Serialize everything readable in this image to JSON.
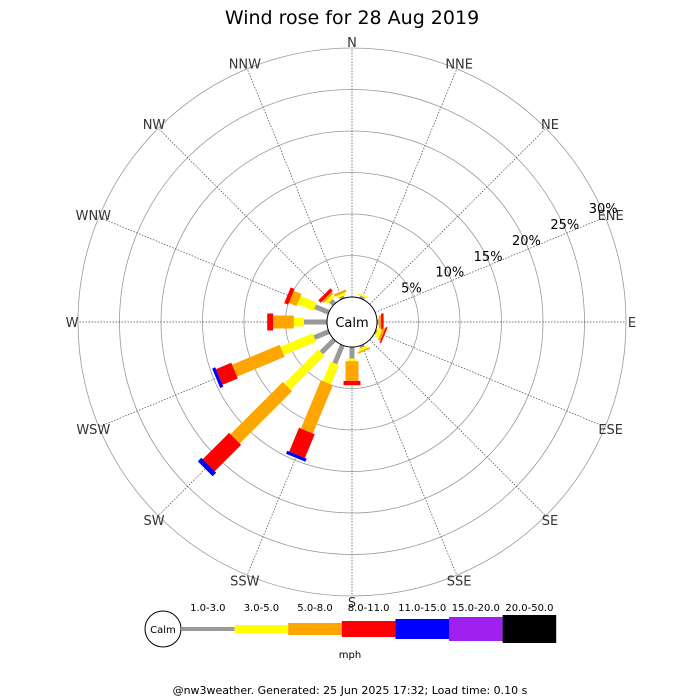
{
  "chart_data": {
    "type": "wind-rose",
    "title": "Wind rose for 28 Aug 2019",
    "directions": [
      "N",
      "NNE",
      "NE",
      "ENE",
      "E",
      "ESE",
      "SE",
      "SSE",
      "S",
      "SSW",
      "SW",
      "WSW",
      "W",
      "WNW",
      "NW",
      "NNW"
    ],
    "rings": [
      "5%",
      "10%",
      "15%",
      "20%",
      "25%",
      "30%"
    ],
    "ring_max_percent": 30,
    "calm_label": "Calm",
    "unit": "mph",
    "speed_bins": [
      {
        "label": "1.0-3.0",
        "color": "#999999"
      },
      {
        "label": "3.0-5.0",
        "color": "#ffff00"
      },
      {
        "label": "5.0-8.0",
        "color": "#ffa500"
      },
      {
        "label": "8.0-11.0",
        "color": "#ff0000"
      },
      {
        "label": "11.0-15.0",
        "color": "#0000ff"
      },
      {
        "label": "15.0-20.0",
        "color": "#a020f0"
      },
      {
        "label": "20.0-50.0",
        "color": "#000000"
      }
    ],
    "series": [
      {
        "direction": "N",
        "values": [
          0,
          0,
          0,
          0,
          0,
          0,
          0
        ]
      },
      {
        "direction": "NNE",
        "values": [
          0.3,
          0.2,
          0,
          0,
          0,
          0,
          0
        ]
      },
      {
        "direction": "NE",
        "values": [
          0,
          0,
          0,
          0,
          0,
          0,
          0
        ]
      },
      {
        "direction": "ENE",
        "values": [
          0,
          0,
          0,
          0,
          0,
          0,
          0
        ]
      },
      {
        "direction": "E",
        "values": [
          0.2,
          0,
          0.3,
          0.3,
          0,
          0,
          0
        ]
      },
      {
        "direction": "ESE",
        "values": [
          0.2,
          0.5,
          0.3,
          0.2,
          0,
          0,
          0
        ]
      },
      {
        "direction": "SE",
        "values": [
          0,
          0,
          0,
          0,
          0,
          0,
          0
        ]
      },
      {
        "direction": "SSE",
        "values": [
          0.3,
          0.3,
          0.2,
          0,
          0,
          0,
          0
        ]
      },
      {
        "direction": "S",
        "values": [
          1.4,
          0.3,
          2.4,
          0.5,
          0,
          0,
          0
        ]
      },
      {
        "direction": "SSW",
        "values": [
          2.4,
          2.5,
          6.3,
          3.1,
          0.4,
          0,
          0
        ]
      },
      {
        "direction": "SW",
        "values": [
          2.2,
          5.8,
          8.9,
          4.5,
          0.6,
          0,
          0
        ]
      },
      {
        "direction": "WSW",
        "values": [
          1.9,
          4.2,
          6.2,
          2.0,
          0.4,
          0,
          0
        ]
      },
      {
        "direction": "W",
        "values": [
          2.8,
          1.2,
          2.5,
          0.7,
          0,
          0,
          0
        ]
      },
      {
        "direction": "WNW",
        "values": [
          1.8,
          2.1,
          1.0,
          0.5,
          0,
          0,
          0
        ]
      },
      {
        "direction": "NW",
        "values": [
          0.6,
          0.4,
          0.3,
          0.4,
          0,
          0,
          0
        ]
      },
      {
        "direction": "NNW",
        "values": [
          0.3,
          0.3,
          0.3,
          0,
          0,
          0,
          0
        ]
      }
    ]
  },
  "footer": "@nw3weather. Generated: 25 Jun 2025 17:32; Load time: 0.10 s"
}
